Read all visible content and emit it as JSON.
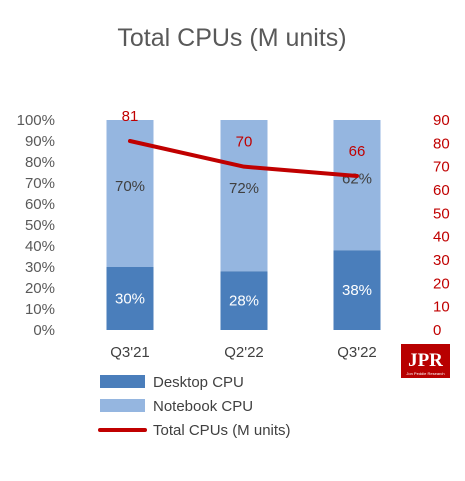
{
  "chart_data": {
    "type": "bar",
    "subtype": "stacked-100-percent-with-line-secondary-axis",
    "title": "Total CPUs (M units)",
    "categories": [
      "Q3'21",
      "Q2'22",
      "Q3'22"
    ],
    "series": [
      {
        "name": "Desktop CPU",
        "kind": "bar",
        "axis": "left",
        "values": [
          30,
          28,
          38
        ],
        "labels": [
          "30%",
          "28%",
          "38%"
        ],
        "color": "#4a7ebb"
      },
      {
        "name": "Notebook CPU",
        "kind": "bar",
        "axis": "left",
        "values": [
          70,
          72,
          62
        ],
        "labels": [
          "70%",
          "72%",
          "62%"
        ],
        "color": "#95b6e0"
      },
      {
        "name": "Total CPUs (M units)",
        "kind": "line",
        "axis": "right",
        "values": [
          81,
          70,
          66
        ],
        "labels": [
          "81",
          "70",
          "66"
        ],
        "color": "#c00000"
      }
    ],
    "y_left": {
      "ticks": [
        "0%",
        "10%",
        "20%",
        "30%",
        "40%",
        "50%",
        "60%",
        "70%",
        "80%",
        "90%",
        "100%"
      ],
      "range": [
        0,
        100
      ]
    },
    "y_right": {
      "ticks": [
        "0",
        "10",
        "20",
        "30",
        "40",
        "50",
        "60",
        "70",
        "80",
        "90"
      ],
      "range": [
        0,
        90
      ]
    },
    "grid": false,
    "legend": "bottom-left",
    "logo": {
      "text": "JPR",
      "subtext": "Jon Peddie Research",
      "color": "#b80000"
    }
  }
}
